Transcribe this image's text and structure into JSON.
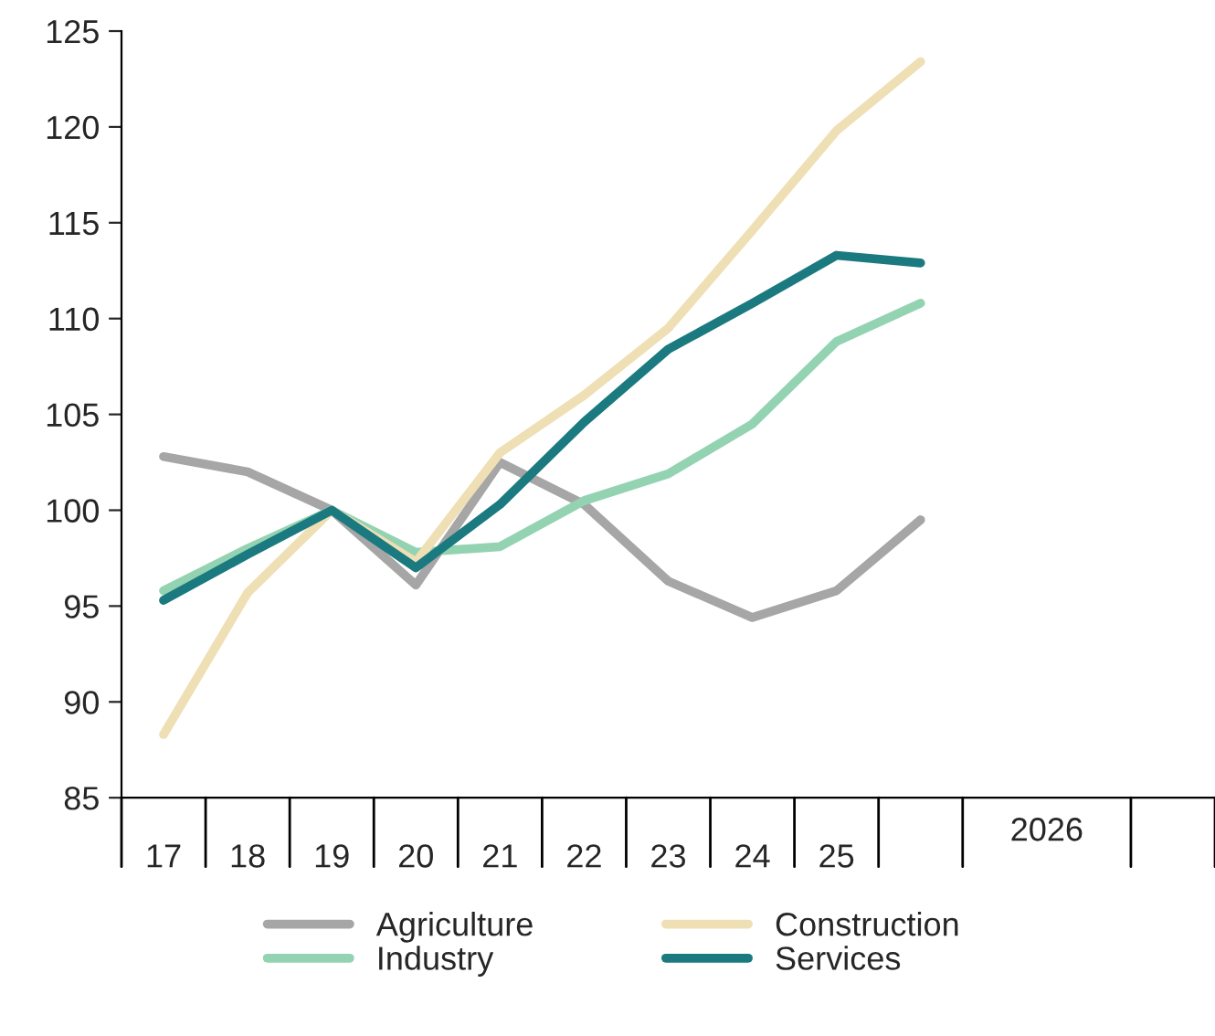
{
  "chart_data": {
    "type": "line",
    "categories": [
      "17",
      "18",
      "19",
      "20",
      "21",
      "22",
      "23",
      "24",
      "25",
      null,
      null,
      null,
      null
    ],
    "series": [
      {
        "name": "Agriculture",
        "color": "#a6a6a6",
        "values": [
          102.8,
          102.0,
          100,
          96.1,
          102.5,
          100.3,
          96.3,
          94.4,
          95.8,
          99.5,
          null,
          null,
          null
        ]
      },
      {
        "name": "Industry",
        "color": "#93d3b2",
        "values": [
          95.8,
          98.0,
          100,
          97.8,
          98.1,
          100.5,
          101.9,
          104.5,
          108.8,
          110.8,
          null,
          null,
          null
        ]
      },
      {
        "name": "Construction",
        "color": "#efdfb4",
        "values": [
          88.3,
          95.7,
          100,
          97.3,
          103.0,
          106.0,
          109.5,
          114.6,
          119.8,
          123.4,
          null,
          null,
          null
        ]
      },
      {
        "name": "Services",
        "color": "#1b7a80",
        "values": [
          95.3,
          97.7,
          100,
          97.0,
          100.3,
          104.6,
          108.4,
          110.8,
          113.3,
          112.9,
          null,
          null,
          null
        ]
      }
    ],
    "ylim": [
      85,
      125
    ],
    "yticks": [
      85,
      90,
      95,
      100,
      105,
      110,
      115,
      120,
      125
    ],
    "annotations": [
      "2026"
    ],
    "grid": false,
    "legend": "bottom",
    "marker": "none",
    "line_style": "solid"
  }
}
